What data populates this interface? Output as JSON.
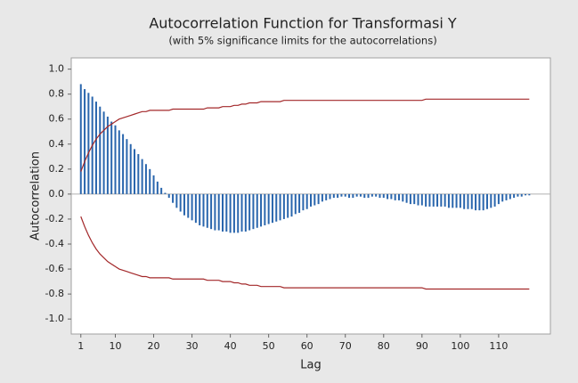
{
  "chart_data": {
    "type": "bar",
    "title": "Autocorrelation Function for Transformasi Y",
    "subtitle": "(with 5% significance limits for the autocorrelations)",
    "xlabel": "Lag",
    "ylabel": "Autocorrelation",
    "x": [
      1,
      2,
      3,
      4,
      5,
      6,
      7,
      8,
      9,
      10,
      11,
      12,
      13,
      14,
      15,
      16,
      17,
      18,
      19,
      20,
      21,
      22,
      23,
      24,
      25,
      26,
      27,
      28,
      29,
      30,
      31,
      32,
      33,
      34,
      35,
      36,
      37,
      38,
      39,
      40,
      41,
      42,
      43,
      44,
      45,
      46,
      47,
      48,
      49,
      50,
      51,
      52,
      53,
      54,
      55,
      56,
      57,
      58,
      59,
      60,
      61,
      62,
      63,
      64,
      65,
      66,
      67,
      68,
      69,
      70,
      71,
      72,
      73,
      74,
      75,
      76,
      77,
      78,
      79,
      80,
      81,
      82,
      83,
      84,
      85,
      86,
      87,
      88,
      89,
      90,
      91,
      92,
      93,
      94,
      95,
      96,
      97,
      98,
      99,
      100,
      101,
      102,
      103,
      104,
      105,
      106,
      107,
      108,
      109,
      110,
      111,
      112,
      113,
      114,
      115,
      116,
      117,
      118
    ],
    "series": [
      {
        "color": "#2a66ad",
        "values": [
          0.88,
          0.84,
          0.81,
          0.78,
          0.74,
          0.7,
          0.66,
          0.62,
          0.58,
          0.55,
          0.51,
          0.48,
          0.44,
          0.4,
          0.36,
          0.32,
          0.28,
          0.24,
          0.2,
          0.15,
          0.1,
          0.05,
          0.01,
          -0.03,
          -0.07,
          -0.11,
          -0.14,
          -0.17,
          -0.19,
          -0.21,
          -0.23,
          -0.25,
          -0.26,
          -0.27,
          -0.28,
          -0.29,
          -0.29,
          -0.3,
          -0.3,
          -0.31,
          -0.31,
          -0.31,
          -0.3,
          -0.3,
          -0.29,
          -0.28,
          -0.27,
          -0.26,
          -0.25,
          -0.24,
          -0.23,
          -0.22,
          -0.21,
          -0.2,
          -0.19,
          -0.18,
          -0.16,
          -0.15,
          -0.13,
          -0.12,
          -0.1,
          -0.09,
          -0.08,
          -0.06,
          -0.05,
          -0.04,
          -0.03,
          -0.03,
          -0.02,
          -0.02,
          -0.03,
          -0.03,
          -0.02,
          -0.02,
          -0.03,
          -0.03,
          -0.02,
          -0.02,
          -0.03,
          -0.03,
          -0.04,
          -0.04,
          -0.05,
          -0.05,
          -0.06,
          -0.07,
          -0.08,
          -0.08,
          -0.09,
          -0.09,
          -0.1,
          -0.1,
          -0.1,
          -0.1,
          -0.1,
          -0.1,
          -0.11,
          -0.11,
          -0.11,
          -0.11,
          -0.12,
          -0.12,
          -0.12,
          -0.13,
          -0.13,
          -0.13,
          -0.12,
          -0.11,
          -0.1,
          -0.08,
          -0.06,
          -0.05,
          -0.04,
          -0.03,
          -0.02,
          -0.02,
          -0.01,
          -0.01
        ]
      },
      {
        "type": "line",
        "color": "#a3282a",
        "values": [
          0.18,
          0.26,
          0.33,
          0.39,
          0.44,
          0.48,
          0.51,
          0.54,
          0.56,
          0.58,
          0.6,
          0.61,
          0.62,
          0.63,
          0.64,
          0.65,
          0.66,
          0.66,
          0.67,
          0.67,
          0.67,
          0.67,
          0.67,
          0.67,
          0.68,
          0.68,
          0.68,
          0.68,
          0.68,
          0.68,
          0.68,
          0.68,
          0.68,
          0.69,
          0.69,
          0.69,
          0.69,
          0.7,
          0.7,
          0.7,
          0.71,
          0.71,
          0.72,
          0.72,
          0.73,
          0.73,
          0.73,
          0.74,
          0.74,
          0.74,
          0.74,
          0.74,
          0.74,
          0.75,
          0.75,
          0.75,
          0.75,
          0.75,
          0.75,
          0.75,
          0.75,
          0.75,
          0.75,
          0.75,
          0.75,
          0.75,
          0.75,
          0.75,
          0.75,
          0.75,
          0.75,
          0.75,
          0.75,
          0.75,
          0.75,
          0.75,
          0.75,
          0.75,
          0.75,
          0.75,
          0.75,
          0.75,
          0.75,
          0.75,
          0.75,
          0.75,
          0.75,
          0.75,
          0.75,
          0.75,
          0.76,
          0.76,
          0.76,
          0.76,
          0.76,
          0.76,
          0.76,
          0.76,
          0.76,
          0.76,
          0.76,
          0.76,
          0.76,
          0.76,
          0.76,
          0.76,
          0.76,
          0.76,
          0.76,
          0.76,
          0.76,
          0.76,
          0.76,
          0.76,
          0.76,
          0.76,
          0.76,
          0.76
        ]
      },
      {
        "type": "line",
        "color": "#a3282a",
        "values": [
          -0.18,
          -0.26,
          -0.33,
          -0.39,
          -0.44,
          -0.48,
          -0.51,
          -0.54,
          -0.56,
          -0.58,
          -0.6,
          -0.61,
          -0.62,
          -0.63,
          -0.64,
          -0.65,
          -0.66,
          -0.66,
          -0.67,
          -0.67,
          -0.67,
          -0.67,
          -0.67,
          -0.67,
          -0.68,
          -0.68,
          -0.68,
          -0.68,
          -0.68,
          -0.68,
          -0.68,
          -0.68,
          -0.68,
          -0.69,
          -0.69,
          -0.69,
          -0.69,
          -0.7,
          -0.7,
          -0.7,
          -0.71,
          -0.71,
          -0.72,
          -0.72,
          -0.73,
          -0.73,
          -0.73,
          -0.74,
          -0.74,
          -0.74,
          -0.74,
          -0.74,
          -0.74,
          -0.75,
          -0.75,
          -0.75,
          -0.75,
          -0.75,
          -0.75,
          -0.75,
          -0.75,
          -0.75,
          -0.75,
          -0.75,
          -0.75,
          -0.75,
          -0.75,
          -0.75,
          -0.75,
          -0.75,
          -0.75,
          -0.75,
          -0.75,
          -0.75,
          -0.75,
          -0.75,
          -0.75,
          -0.75,
          -0.75,
          -0.75,
          -0.75,
          -0.75,
          -0.75,
          -0.75,
          -0.75,
          -0.75,
          -0.75,
          -0.75,
          -0.75,
          -0.75,
          -0.76,
          -0.76,
          -0.76,
          -0.76,
          -0.76,
          -0.76,
          -0.76,
          -0.76,
          -0.76,
          -0.76,
          -0.76,
          -0.76,
          -0.76,
          -0.76,
          -0.76,
          -0.76,
          -0.76,
          -0.76,
          -0.76,
          -0.76,
          -0.76,
          -0.76,
          -0.76,
          -0.76,
          -0.76,
          -0.76,
          -0.76,
          -0.76
        ]
      }
    ],
    "xlim": [
      -1.5,
      123.5
    ],
    "xticks": [
      1,
      10,
      20,
      30,
      40,
      50,
      60,
      70,
      80,
      90,
      100,
      110
    ],
    "ylim": [
      -1.12,
      1.09
    ],
    "yticks": [
      {
        "value": 1,
        "label": "1.0"
      },
      0.8,
      0.6,
      0.4,
      0.2,
      {
        "value": 0,
        "label": "0.0"
      },
      -0.2,
      -0.4,
      -0.6,
      -0.8,
      {
        "value": -1,
        "label": "-1.0"
      }
    ]
  }
}
